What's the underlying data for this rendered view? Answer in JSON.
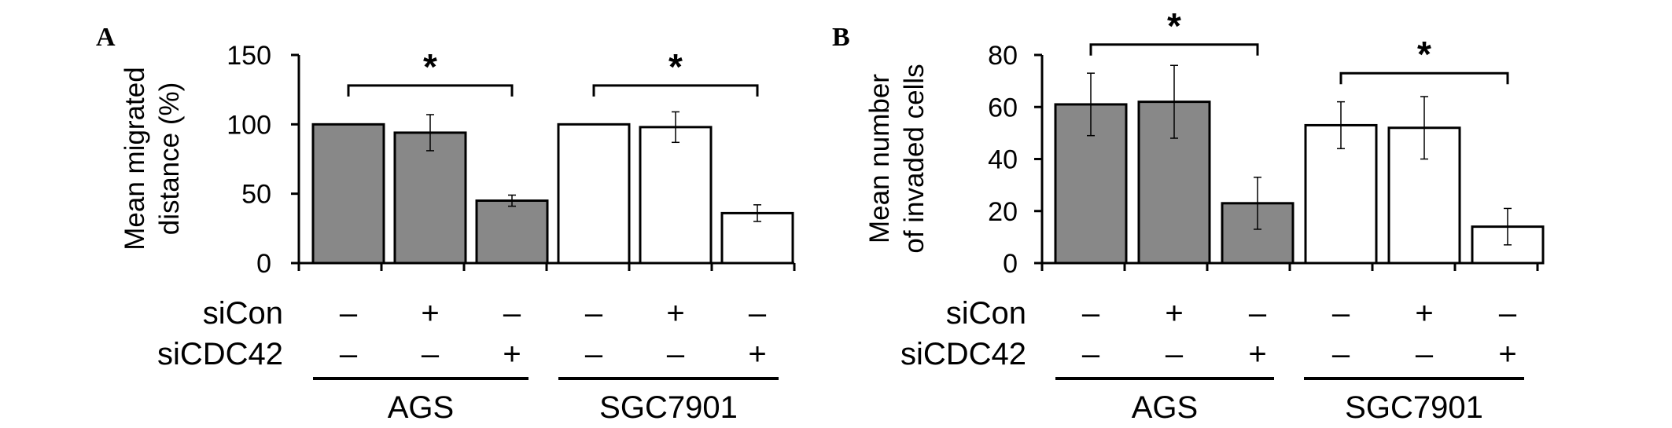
{
  "chart_data": [
    {
      "type": "bar",
      "panel_label": "A",
      "ylabel_lines": [
        "Mean migrated",
        "distance (%)"
      ],
      "ylim": [
        0,
        150
      ],
      "yticks": [
        0,
        50,
        100,
        150
      ],
      "legend": "none",
      "grid": false,
      "conditions": {
        "row1_label": "siCon",
        "row2_label": "siCDC42",
        "row1": [
          "–",
          "+",
          "–",
          "–",
          "+",
          "–"
        ],
        "row2": [
          "–",
          "–",
          "+",
          "–",
          "–",
          "+"
        ]
      },
      "groups": [
        "AGS",
        "SGC7901"
      ],
      "bars": [
        {
          "group": "AGS",
          "value": 100,
          "error": 0,
          "fill": "#888888"
        },
        {
          "group": "AGS",
          "value": 94,
          "error": 13,
          "fill": "#888888"
        },
        {
          "group": "AGS",
          "value": 45,
          "error": 4,
          "fill": "#888888"
        },
        {
          "group": "SGC7901",
          "value": 100,
          "error": 0,
          "fill": "#ffffff"
        },
        {
          "group": "SGC7901",
          "value": 98,
          "error": 11,
          "fill": "#ffffff"
        },
        {
          "group": "SGC7901",
          "value": 36,
          "error": 6,
          "fill": "#ffffff"
        }
      ],
      "significance": [
        {
          "from_bar": 0,
          "to_bar": 2,
          "y": 128,
          "label": "*"
        },
        {
          "from_bar": 3,
          "to_bar": 5,
          "y": 128,
          "label": "*"
        }
      ]
    },
    {
      "type": "bar",
      "panel_label": "B",
      "ylabel_lines": [
        "Mean number",
        "of invaded cells"
      ],
      "ylim": [
        0,
        80
      ],
      "yticks": [
        0,
        20,
        40,
        60,
        80
      ],
      "legend": "none",
      "grid": false,
      "conditions": {
        "row1_label": "siCon",
        "row2_label": "siCDC42",
        "row1": [
          "–",
          "+",
          "–",
          "–",
          "+",
          "–"
        ],
        "row2": [
          "–",
          "–",
          "+",
          "–",
          "–",
          "+"
        ]
      },
      "groups": [
        "AGS",
        "SGC7901"
      ],
      "bars": [
        {
          "group": "AGS",
          "value": 61,
          "error": 12,
          "fill": "#888888"
        },
        {
          "group": "AGS",
          "value": 62,
          "error": 14,
          "fill": "#888888"
        },
        {
          "group": "AGS",
          "value": 23,
          "error": 10,
          "fill": "#888888"
        },
        {
          "group": "SGC7901",
          "value": 53,
          "error": 9,
          "fill": "#ffffff"
        },
        {
          "group": "SGC7901",
          "value": 52,
          "error": 12,
          "fill": "#ffffff"
        },
        {
          "group": "SGC7901",
          "value": 14,
          "error": 7,
          "fill": "#ffffff"
        }
      ],
      "significance": [
        {
          "from_bar": 0,
          "to_bar": 2,
          "y": 84,
          "label": "*"
        },
        {
          "from_bar": 3,
          "to_bar": 5,
          "y": 73,
          "label": "*"
        }
      ]
    }
  ]
}
